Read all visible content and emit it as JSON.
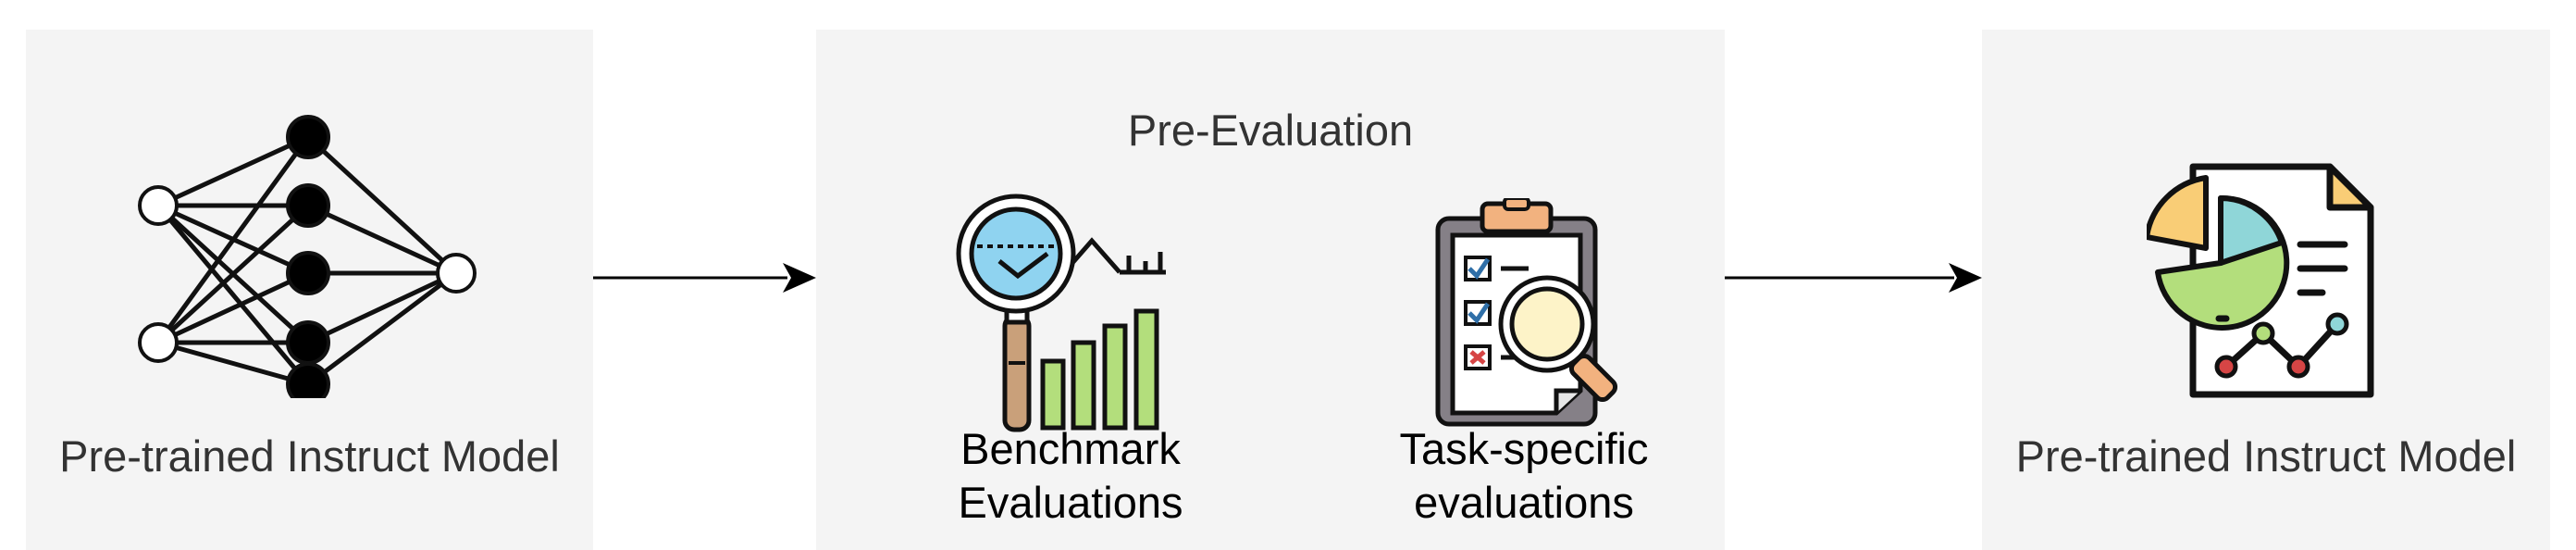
{
  "panels": {
    "left": {
      "label": "Pre-trained Instruct Model",
      "icon": "neural-network-icon"
    },
    "middle": {
      "title": "Pre-Evaluation",
      "items": [
        {
          "label_line1": "Benchmark",
          "label_line2": "Evaluations",
          "icon": "benchmark-chart-magnifier-icon"
        },
        {
          "label_line1": "Task-specific",
          "label_line2": "evaluations",
          "icon": "clipboard-checklist-magnifier-icon"
        }
      ]
    },
    "right": {
      "label": "Pre-trained Instruct Model",
      "icon": "report-analytics-document-icon"
    }
  },
  "colors": {
    "panel_bg": "#f4f4f4",
    "arrow": "#000000",
    "lens_blue": "#8fd3f0",
    "bar_green": "#b3de7c",
    "handle_tan": "#c9a07a",
    "pie_yellow": "#f9cd76",
    "pie_teal": "#8fd6d8",
    "board_gray": "#858087",
    "clip_orange": "#f2b27f",
    "check_blue": "#2f6fa8",
    "x_red": "#d64545"
  }
}
